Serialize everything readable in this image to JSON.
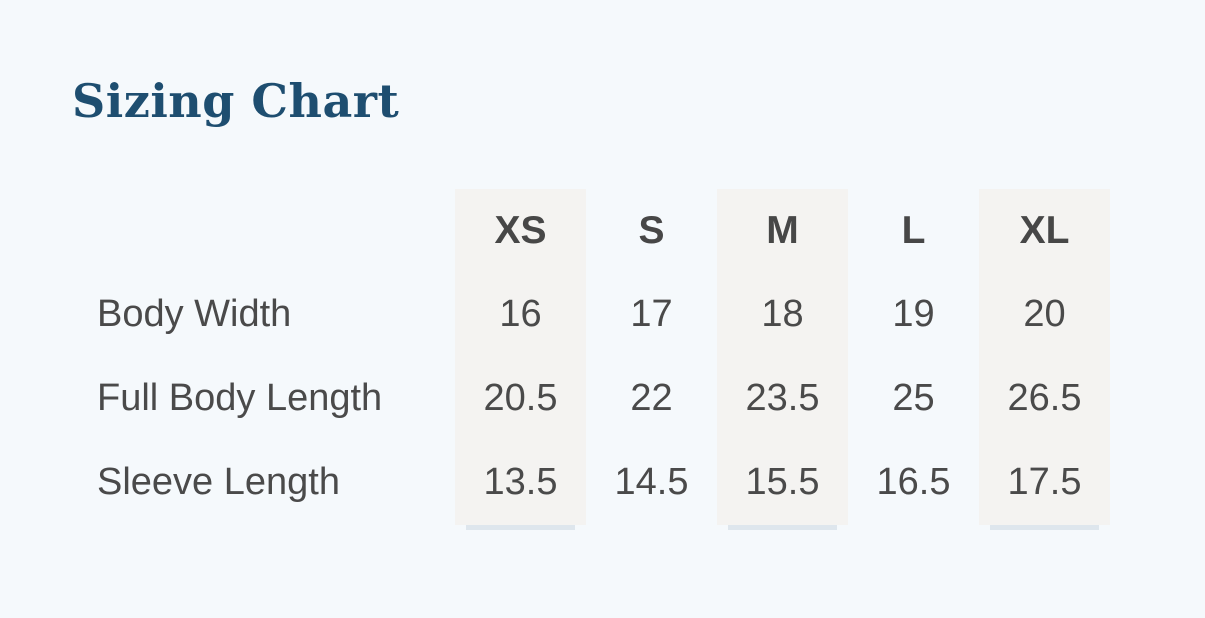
{
  "title": {
    "text": "Sizing Chart"
  },
  "theme": {
    "page_background": "#f5f9fc",
    "title_color": "#1e4e70",
    "stripe_color": "#f4f3f1",
    "text_color": "#4a4a4a",
    "header_text_color": "#474747"
  },
  "chart_data": {
    "type": "table",
    "title": "Sizing Chart",
    "columns": [
      "XS",
      "S",
      "M",
      "L",
      "XL"
    ],
    "rows": [
      {
        "label": "Body Width",
        "values": [
          "16",
          "17",
          "18",
          "19",
          "20"
        ]
      },
      {
        "label": "Full Body Length",
        "values": [
          "20.5",
          "22",
          "23.5",
          "25",
          "26.5"
        ]
      },
      {
        "label": "Sleeve Length",
        "values": [
          "13.5",
          "14.5",
          "15.5",
          "16.5",
          "17.5"
        ]
      }
    ],
    "striped_columns": [
      "XS",
      "M",
      "XL"
    ],
    "legend_position": "none",
    "grid": false
  }
}
